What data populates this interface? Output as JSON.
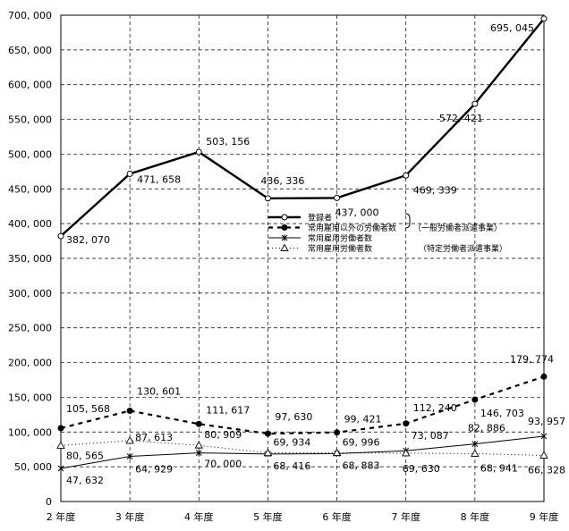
{
  "chart_data": {
    "type": "line",
    "categories": [
      "2 年度",
      "3 年度",
      "4 年度",
      "5 年度",
      "6 年度",
      "7 年度",
      "8 年度",
      "9 年度"
    ],
    "ylim": [
      0,
      700000
    ],
    "yticks": [
      "0",
      "50, 000",
      "100, 000",
      "150, 000",
      "200, 000",
      "250, 000",
      "300, 000",
      "350, 000",
      "400, 000",
      "450, 000",
      "500, 000",
      "550, 000",
      "600, 000",
      "650, 000",
      "700, 000"
    ],
    "grid": true,
    "legend_position": "center-right",
    "series": [
      {
        "name": "登録者",
        "style": "solid-thick",
        "marker": "open-circle",
        "values": [
          382070,
          471658,
          503156,
          436336,
          437000,
          469339,
          572421,
          695045
        ],
        "labels": [
          "382, 070",
          "471, 658",
          "503, 156",
          "436, 336",
          "437, 000",
          "469, 339",
          "572, 421",
          "695, 045"
        ]
      },
      {
        "name": "常用雇用以外の労働者数",
        "style": "dashed-thick",
        "marker": "filled-circle",
        "values": [
          105568,
          130601,
          111617,
          97630,
          99421,
          112240,
          146703,
          179774
        ],
        "labels": [
          "105, 568",
          "130, 601",
          "111, 617",
          "97, 630",
          "99, 421",
          "112, 240",
          "146, 703",
          "179, 774"
        ]
      },
      {
        "name": "常用雇用労働者数",
        "style": "solid-thin",
        "marker": "asterisk",
        "values": [
          47632,
          64929,
          70000,
          68416,
          68883,
          73087,
          82886,
          93957
        ],
        "labels": [
          "47, 632",
          "64, 929",
          "70, 000",
          "68, 416",
          "68, 883",
          "73, 087",
          "82, 886",
          "93, 957"
        ]
      },
      {
        "name": "常用雇用労働者数",
        "style": "dotted",
        "marker": "open-triangle",
        "values": [
          80565,
          87613,
          80909,
          69934,
          69996,
          69630,
          68941,
          66328
        ],
        "labels": [
          "80, 565",
          "87, 613",
          "80, 909",
          "69, 934",
          "69, 996",
          "69, 630",
          "68, 941",
          "66, 328"
        ]
      }
    ],
    "legend_notes": [
      "（一般労働者派遣事業）",
      "（特定労働者派遣事業）"
    ]
  }
}
